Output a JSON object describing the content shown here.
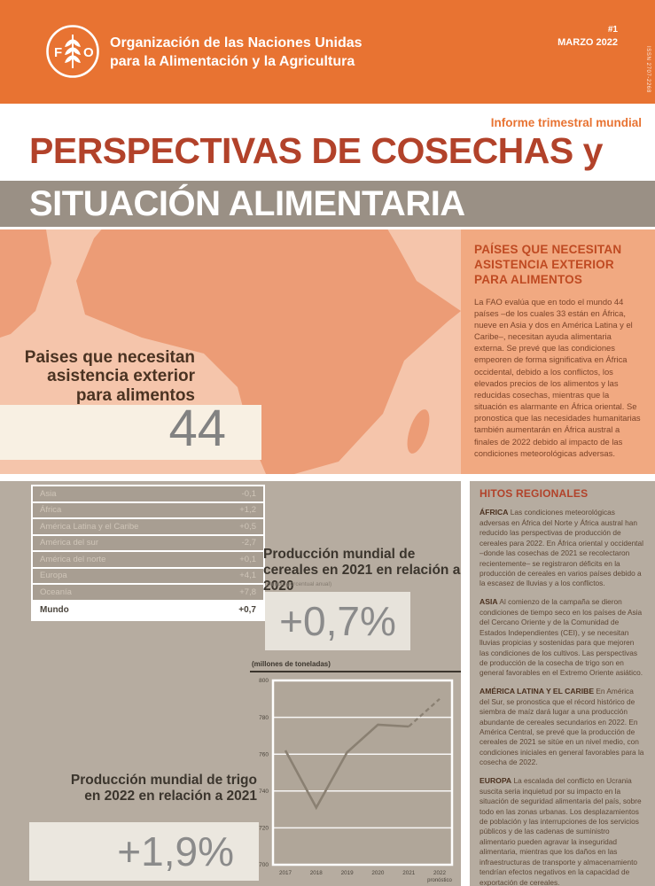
{
  "header": {
    "org_line1": "Organización de las Naciones Unidas",
    "org_line2": "para la Alimentación y la Agricultura",
    "issue": "#1",
    "date": "MARZO 2022",
    "issn": "ISSN 2707-2268"
  },
  "title": {
    "kicker": "Informe trimestral mundial",
    "line1": "PERSPECTIVAS DE COSECHAS y",
    "line2": "SITUACIÓN ALIMENTARIA"
  },
  "map_section": {
    "label": "Paises que necesitan asistencia exterior para alimentos",
    "count": "44"
  },
  "sidebar": {
    "heading": "PAÍSES QUE NECESITAN ASISTENCIA EXTERIOR PARA ALIMENTOS",
    "body": "La FAO evalúa que en todo el mundo 44 países –de los cuales 33 están en África, nueve en Asia y dos en América Latina y el Caribe–, necesitan ayuda alimentaria externa. Se prevé que las condiciones empeoren de forma significativa en África occidental, debido a los conflictos, los elevados precios de los alimentos y las reducidas cosechas, mientras que la situación es alarmante en África oriental. Se pronostica que las necesidades humanitarias también aumentarán en África austral a finales de 2022 debido al impacto de las condiciones meteorológicas adversas."
  },
  "table": {
    "rows": [
      {
        "label": "Asia",
        "value": "-0,1"
      },
      {
        "label": "África",
        "value": "+1,2"
      },
      {
        "label": "América Latina y el Caribe",
        "value": "+0,5"
      },
      {
        "label": "América del sur",
        "value": "-2,7"
      },
      {
        "label": "América del norte",
        "value": "+0,1"
      },
      {
        "label": "Europa",
        "value": "+4,1"
      },
      {
        "label": "Oceanía",
        "value": "+7,8"
      }
    ],
    "total": {
      "label": "Mundo",
      "value": "+0,7"
    }
  },
  "cereals": {
    "heading": "Producción mundial de cereales en 2021 en relación a 2020",
    "subnote": "(cambio porcentual anual)",
    "value": "+0,7%"
  },
  "wheat": {
    "heading": "Producción mundial de trigo en 2022 en relación a 2021",
    "value": "+1,9%"
  },
  "chart_data": {
    "type": "line",
    "title": "(millones de toneladas)",
    "x": [
      "2017",
      "2018",
      "2019",
      "2020",
      "2021",
      "2022"
    ],
    "values": [
      762,
      731,
      761,
      776,
      775,
      790
    ],
    "forecast_from_index": 4,
    "x_note": "pronóstico",
    "xlabel": "",
    "ylabel": "millones de toneladas",
    "ylim": [
      700,
      800
    ],
    "yticks": [
      700,
      720,
      740,
      760,
      780,
      800
    ],
    "grid": true,
    "legend": "none"
  },
  "highlights": {
    "heading": "HITOS REGIONALES",
    "sections": [
      {
        "region": "ÁFRICA",
        "text": "Las condiciones meteorológicas adversas en África del Norte y África austral han reducido las perspectivas de producción de cereales para 2022. En África oriental y occidental –donde las cosechas de 2021 se recolectaron recientemente– se registraron déficits en la producción de cereales en varios países debido a la escasez de lluvias y a los conflictos."
      },
      {
        "region": "ASIA",
        "text": "Al comienzo de la campaña se dieron condiciones de tiempo seco en los países de Asia del Cercano Oriente y de la Comunidad de Estados Independientes (CEI), y se necesitan lluvias propicias y sostenidas para que mejoren las condiciones de los cultivos. Las perspectivas de producción de la cosecha de trigo son en general favorables en el Extremo Oriente asiático."
      },
      {
        "region": "AMÉRICA LATINA Y EL CARIBE",
        "text": "En América del Sur, se pronostica que el récord histórico de siembra de maíz dará lugar a una producción abundante de cereales secundarios en 2022. En América Central, se prevé que la producción de cereales de 2021 se sitúe en un nivel medio, con condiciones iniciales en general favorables para la cosecha de 2022."
      },
      {
        "region": "EUROPA",
        "text": "La escalada del conflicto en Ucrania suscita seria inquietud por su impacto en la situación de seguridad alimentaria del país, sobre todo en las zonas urbanas. Los desplazamientos de población y las interrupciones de los servicios públicos y de las cadenas de suministro alimentario pueden agravar la inseguridad alimentaria, mientras que los daños en las infraestructuras de transporte y almacenamiento tendrían efectos negativos en la capacidad de exportación de cereales."
      }
    ]
  },
  "colors": {
    "fao_orange": "#E87332",
    "rust_red": "#B2422A",
    "taupe_band": "#9A9085",
    "lower_bg": "#B6ACA0",
    "map_bg": "#F5C5AB",
    "africa_fill": "#EC9C76",
    "sidebar_bg": "#F1A981",
    "big_number_gray": "#8b8b8b"
  }
}
